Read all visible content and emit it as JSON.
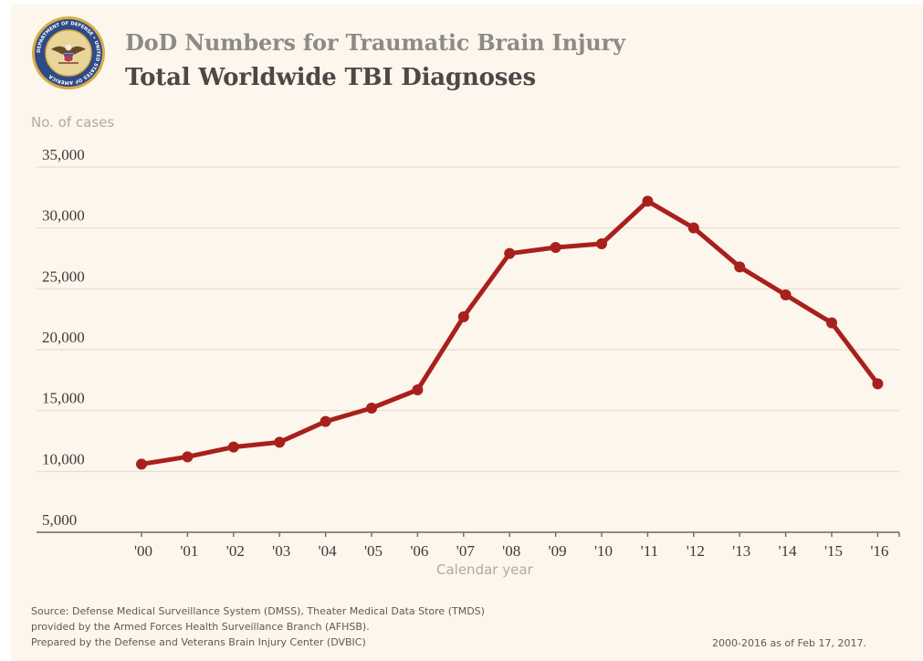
{
  "header": {
    "title": "DoD Numbers for Traumatic Brain Injury",
    "subtitle": "Total Worldwide TBI Diagnoses",
    "seal_text": "DEPARTMENT OF DEFENSE • UNITED STATES OF AMERICA"
  },
  "colors": {
    "background": "#fcf6ec",
    "line": "#a8201c",
    "grid": "#e4ddd2",
    "axis": "#6d6762",
    "title": "#8e8a85",
    "subtitle": "#4d4846",
    "axis_title": "#b0aaa3",
    "seal_blue": "#2f4a86",
    "seal_gold": "#d6ad45"
  },
  "chart_data": {
    "type": "line",
    "title": "Total Worldwide TBI Diagnoses",
    "ylabel": "No. of cases",
    "xlabel": "Calendar year",
    "categories": [
      "'00",
      "'01",
      "'02",
      "'03",
      "'04",
      "'05",
      "'06",
      "'07",
      "'08",
      "'09",
      "'10",
      "'11",
      "'12",
      "'13",
      "'14",
      "'15",
      "'16"
    ],
    "series": [
      {
        "values": [
          10600,
          11200,
          12000,
          12400,
          14100,
          15200,
          16700,
          22700,
          27900,
          28400,
          28700,
          32200,
          30000,
          26800,
          24500,
          22200,
          17200
        ]
      }
    ],
    "yticks": [
      5000,
      10000,
      15000,
      20000,
      25000,
      30000,
      35000
    ],
    "ytick_labels": [
      "5,000",
      "10,000",
      "15,000",
      "20,000",
      "25,000",
      "30,000",
      "35,000"
    ],
    "ylim": [
      5000,
      35000
    ],
    "grid": true,
    "legend": "none"
  },
  "footer": {
    "source_lines": [
      "Source: Defense Medical Surveillance System (DMSS), Theater Medical Data Store (TMDS)",
      "provided by the Armed Forces Health Surveillance Branch (AFHSB).",
      "Prepared by the Defense and Veterans Brain Injury Center (DVBIC)"
    ],
    "note": "2000-2016 as of Feb 17, 2017."
  }
}
